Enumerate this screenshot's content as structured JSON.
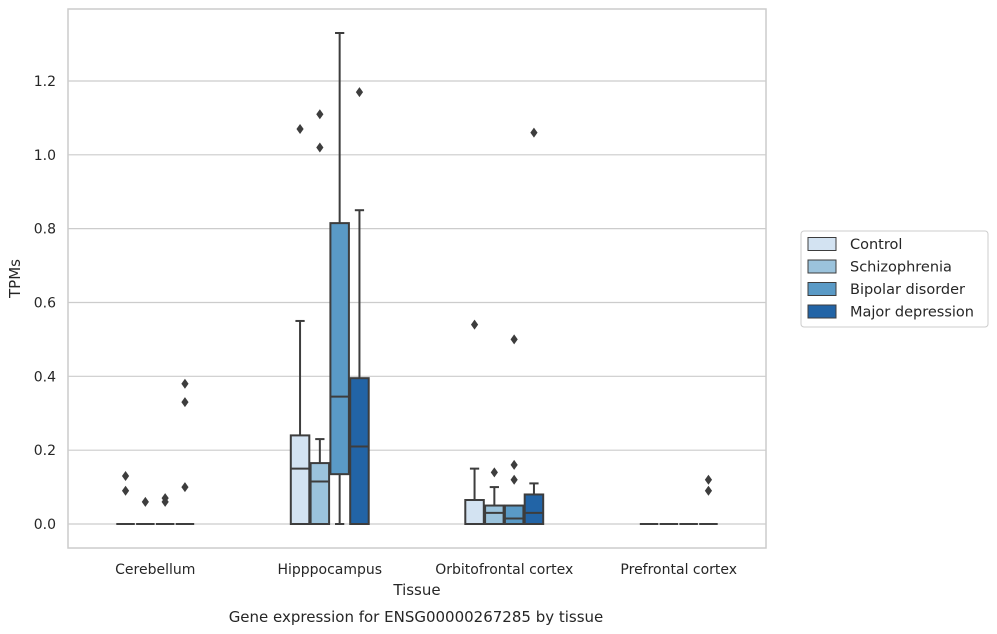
{
  "chart_data": {
    "type": "box",
    "xlabel": "Tissue",
    "ylabel": "TPMs",
    "caption": "Gene expression for ENSG00000267285 by tissue",
    "categories": [
      "Cerebellum",
      "Hipppocampus",
      "Orbitofrontal cortex",
      "Prefrontal cortex"
    ],
    "ylim": [
      -0.065,
      1.395
    ],
    "yticks": [
      0.0,
      0.2,
      0.4,
      0.6,
      0.8,
      1.0,
      1.2
    ],
    "ytick_labels": [
      "0.0",
      "0.2",
      "0.4",
      "0.6",
      "0.8",
      "1.0",
      "1.2"
    ],
    "grid": "horizontal",
    "legend_position": "right",
    "series": [
      {
        "name": "Control",
        "color": "#d3e3f2",
        "boxes": [
          {
            "q1": 0,
            "median": 0,
            "q3": 0,
            "whislo": 0,
            "whishi": 0,
            "fliers": [
              0.13,
              0.09
            ]
          },
          {
            "q1": 0,
            "median": 0.15,
            "q3": 0.24,
            "whislo": 0,
            "whishi": 0.55,
            "fliers": [
              1.07
            ]
          },
          {
            "q1": 0,
            "median": 0,
            "q3": 0.065,
            "whislo": 0,
            "whishi": 0.15,
            "fliers": [
              0.54
            ]
          },
          {
            "q1": 0,
            "median": 0,
            "q3": 0,
            "whislo": 0,
            "whishi": 0,
            "fliers": []
          }
        ]
      },
      {
        "name": "Schizophrenia",
        "color": "#9bc3dc",
        "boxes": [
          {
            "q1": 0,
            "median": 0,
            "q3": 0,
            "whislo": 0,
            "whishi": 0,
            "fliers": [
              0.06
            ]
          },
          {
            "q1": 0,
            "median": 0.115,
            "q3": 0.165,
            "whislo": 0,
            "whishi": 0.23,
            "fliers": [
              1.11,
              1.02
            ]
          },
          {
            "q1": 0,
            "median": 0.03,
            "q3": 0.05,
            "whislo": 0,
            "whishi": 0.1,
            "fliers": [
              0.14
            ]
          },
          {
            "q1": 0,
            "median": 0,
            "q3": 0,
            "whislo": 0,
            "whishi": 0,
            "fliers": []
          }
        ]
      },
      {
        "name": "Bipolar disorder",
        "color": "#5a9ac6",
        "boxes": [
          {
            "q1": 0,
            "median": 0,
            "q3": 0,
            "whislo": 0,
            "whishi": 0,
            "fliers": [
              0.07,
              0.06
            ]
          },
          {
            "q1": 0.135,
            "median": 0.345,
            "q3": 0.815,
            "whislo": 0,
            "whishi": 1.33,
            "fliers": []
          },
          {
            "q1": 0,
            "median": 0.015,
            "q3": 0.05,
            "whislo": 0,
            "whishi": 0.05,
            "fliers": [
              0.5,
              0.16,
              0.12
            ]
          },
          {
            "q1": 0,
            "median": 0,
            "q3": 0,
            "whislo": 0,
            "whishi": 0,
            "fliers": []
          }
        ]
      },
      {
        "name": "Major depression",
        "color": "#2264a6",
        "boxes": [
          {
            "q1": 0,
            "median": 0,
            "q3": 0,
            "whislo": 0,
            "whishi": 0,
            "fliers": [
              0.38,
              0.33,
              0.1
            ]
          },
          {
            "q1": 0,
            "median": 0.21,
            "q3": 0.395,
            "whislo": 0,
            "whishi": 0.85,
            "fliers": [
              1.17
            ]
          },
          {
            "q1": 0,
            "median": 0.03,
            "q3": 0.08,
            "whislo": 0,
            "whishi": 0.11,
            "fliers": [
              1.06
            ]
          },
          {
            "q1": 0,
            "median": 0,
            "q3": 0,
            "whislo": 0,
            "whishi": 0,
            "fliers": [
              0.12,
              0.09
            ]
          }
        ]
      }
    ]
  }
}
